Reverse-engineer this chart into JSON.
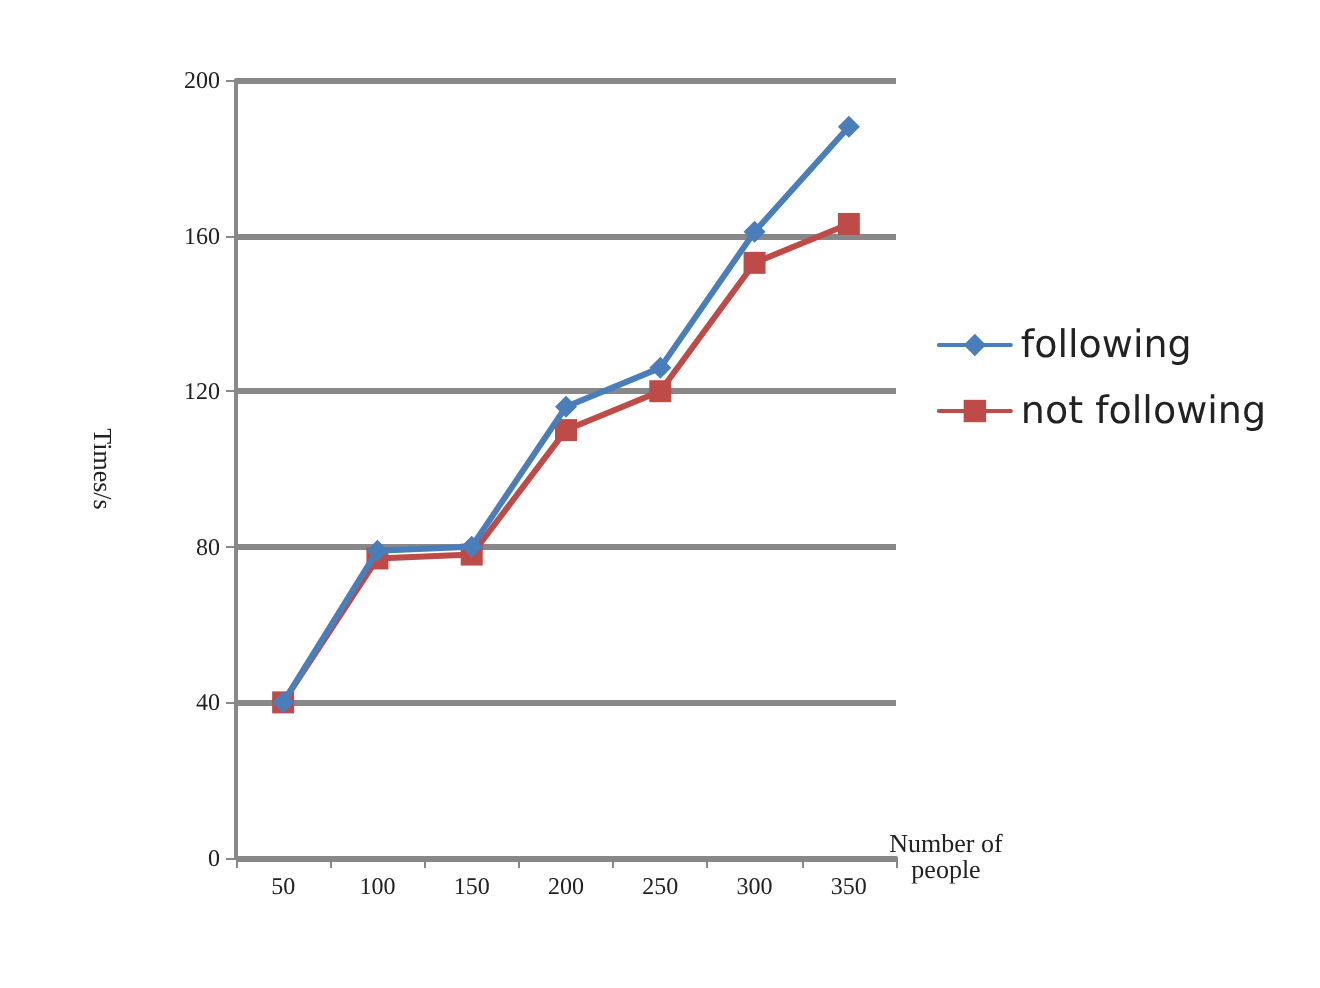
{
  "chart_data": {
    "type": "line",
    "xlabel": "Number of\npeople",
    "ylabel": "Times/s",
    "categories": [
      "50",
      "100",
      "150",
      "200",
      "250",
      "300",
      "350"
    ],
    "series": [
      {
        "name": "following",
        "color": "#4a7ebb",
        "marker": "diamond",
        "values": [
          40,
          79,
          80,
          116,
          126,
          161,
          188
        ]
      },
      {
        "name": "not following",
        "color": "#be4b48",
        "marker": "square",
        "values": [
          40,
          77,
          78,
          110,
          120,
          153,
          163
        ]
      }
    ],
    "ylim": [
      0,
      200
    ],
    "yticks": [
      0,
      40,
      80,
      120,
      160,
      200
    ],
    "grid": "y",
    "legend": "right",
    "line_style": "solid"
  }
}
